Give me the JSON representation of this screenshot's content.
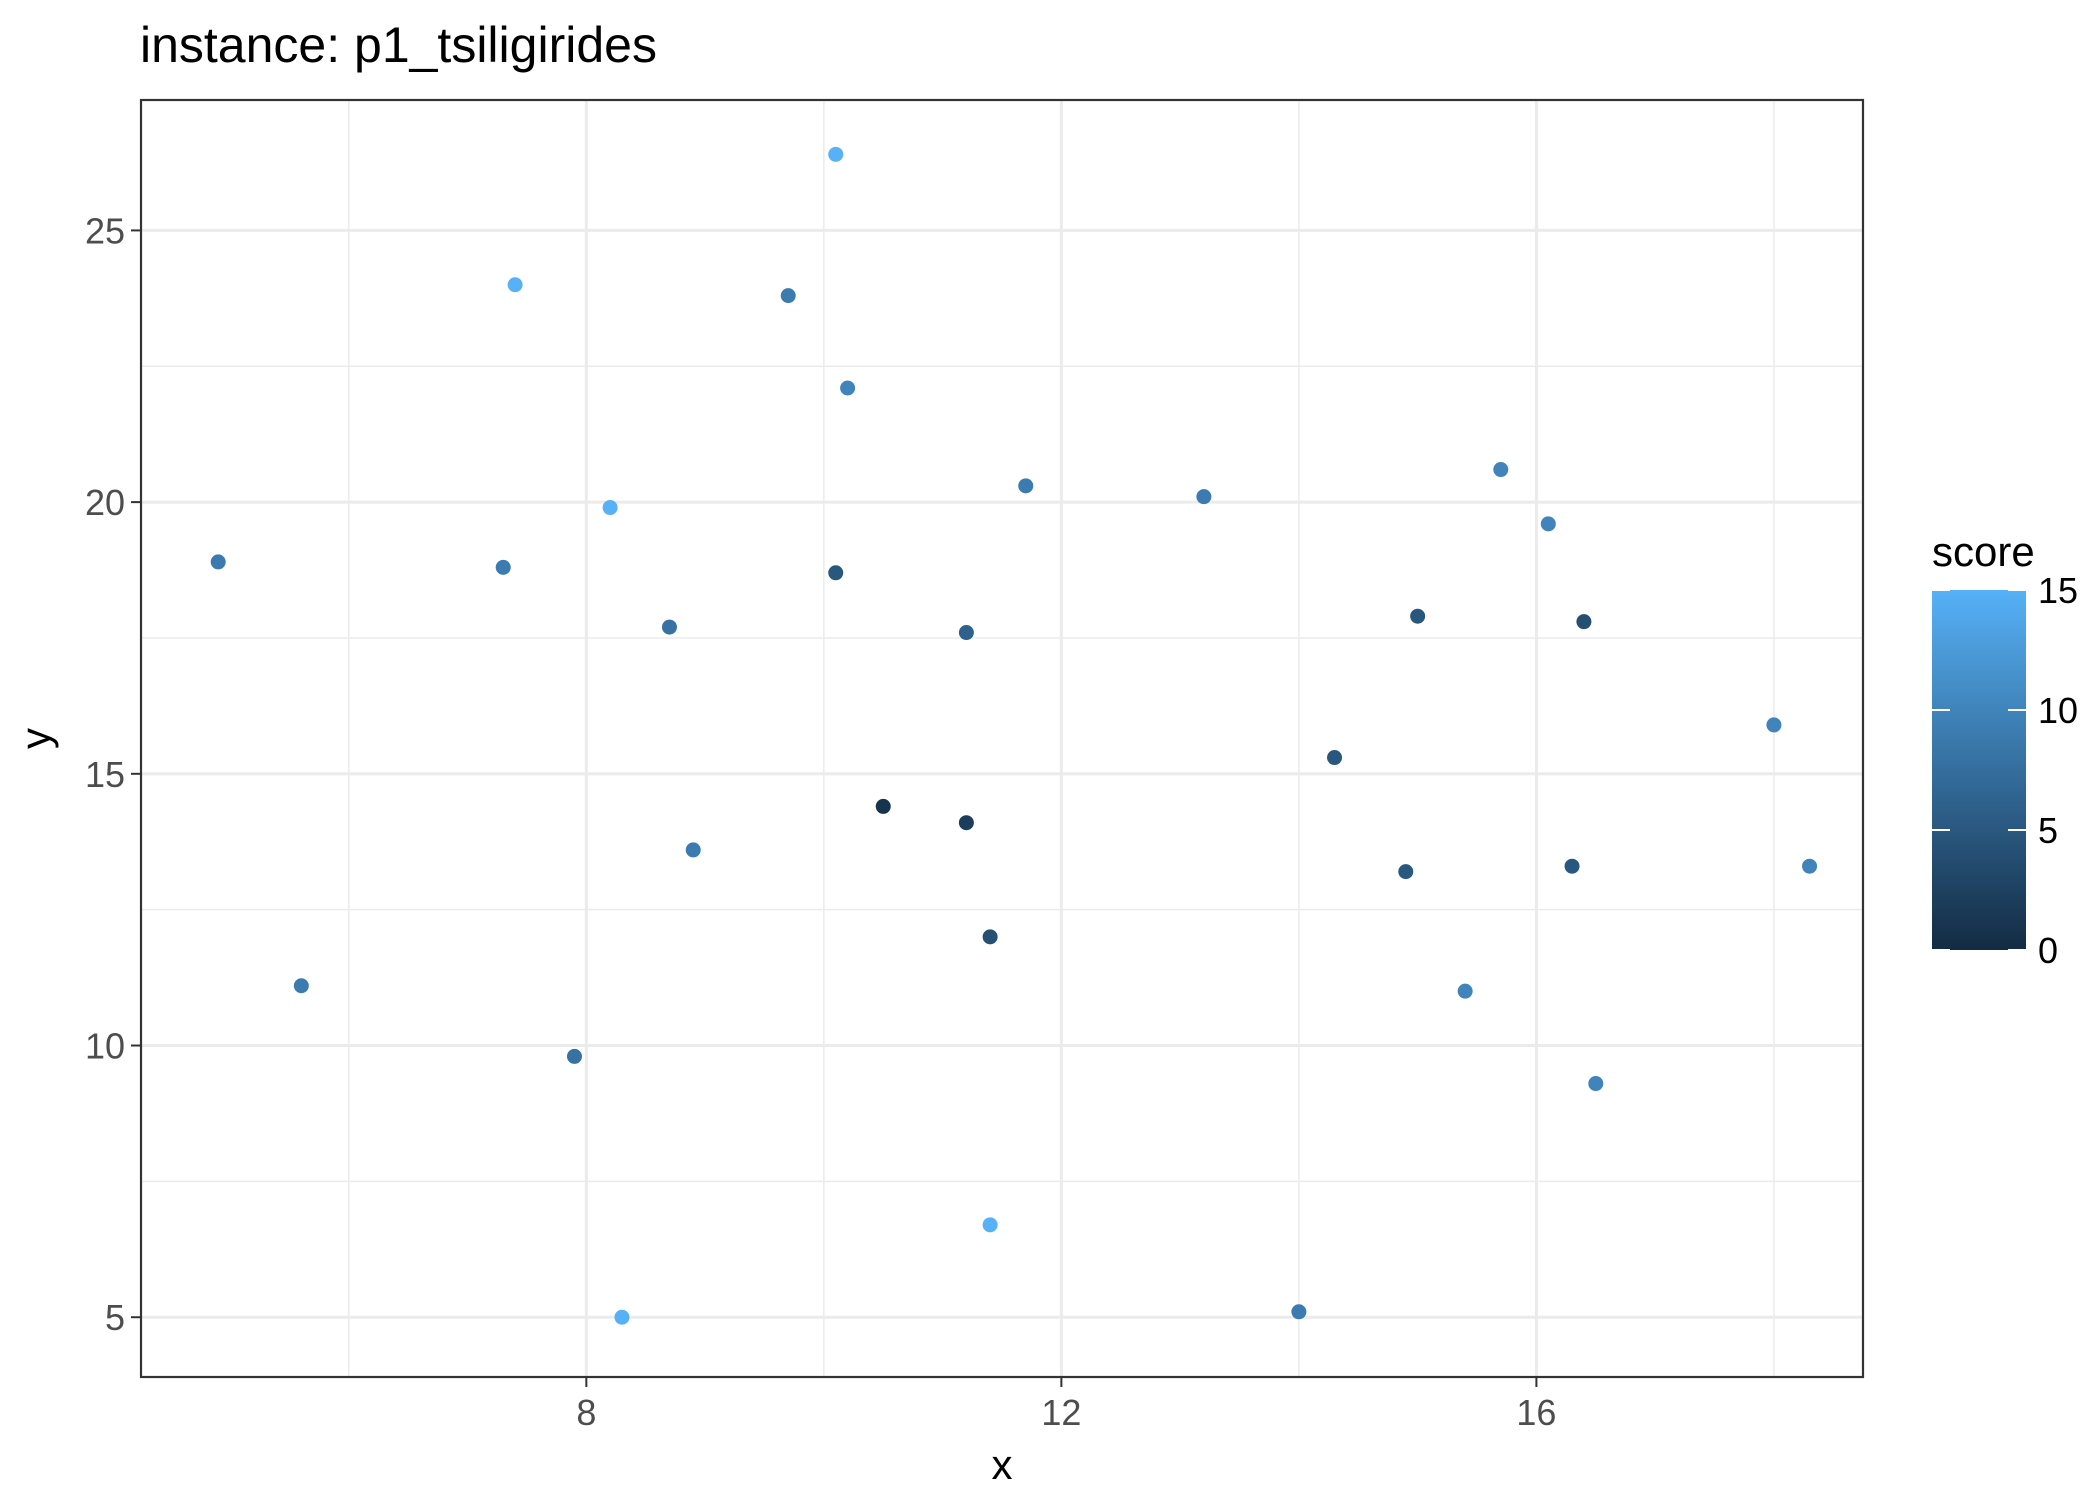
{
  "chart_data": {
    "type": "scatter",
    "title": "instance: p1_tsiligirides",
    "xlabel": "x",
    "ylabel": "y",
    "xlim": [
      4.25,
      18.75
    ],
    "ylim": [
      3.9,
      27.4
    ],
    "x_ticks": [
      8,
      12,
      16
    ],
    "y_ticks": [
      5,
      10,
      15,
      20,
      25
    ],
    "x_minor_ticks": [
      6,
      10,
      14,
      18
    ],
    "y_minor_ticks": [
      7.5,
      12.5,
      17.5,
      22.5
    ],
    "grid": true,
    "legend": {
      "title": "score",
      "placement": "right",
      "ticks": [
        0,
        5,
        10,
        15
      ],
      "range": [
        0,
        15
      ],
      "low_color": "#132b43",
      "high_color": "#56b1f7"
    },
    "points": [
      {
        "x": 10.1,
        "y": 26.4,
        "score": 15
      },
      {
        "x": 7.4,
        "y": 24.0,
        "score": 15
      },
      {
        "x": 9.7,
        "y": 23.8,
        "score": 9
      },
      {
        "x": 10.2,
        "y": 22.1,
        "score": 10
      },
      {
        "x": 11.7,
        "y": 20.3,
        "score": 9
      },
      {
        "x": 13.2,
        "y": 20.1,
        "score": 9
      },
      {
        "x": 8.2,
        "y": 19.9,
        "score": 15
      },
      {
        "x": 15.7,
        "y": 20.6,
        "score": 10
      },
      {
        "x": 16.1,
        "y": 19.6,
        "score": 10
      },
      {
        "x": 4.9,
        "y": 18.9,
        "score": 9
      },
      {
        "x": 7.3,
        "y": 18.8,
        "score": 9
      },
      {
        "x": 10.1,
        "y": 18.7,
        "score": 5
      },
      {
        "x": 8.7,
        "y": 17.7,
        "score": 8
      },
      {
        "x": 11.2,
        "y": 17.6,
        "score": 6
      },
      {
        "x": 15.0,
        "y": 17.9,
        "score": 5
      },
      {
        "x": 16.4,
        "y": 17.8,
        "score": 4
      },
      {
        "x": 18.0,
        "y": 15.9,
        "score": 10
      },
      {
        "x": 14.3,
        "y": 15.3,
        "score": 5
      },
      {
        "x": 10.5,
        "y": 14.4,
        "score": 1
      },
      {
        "x": 11.2,
        "y": 14.1,
        "score": 2
      },
      {
        "x": 8.9,
        "y": 13.6,
        "score": 9
      },
      {
        "x": 14.9,
        "y": 13.2,
        "score": 5
      },
      {
        "x": 16.3,
        "y": 13.3,
        "score": 5
      },
      {
        "x": 18.3,
        "y": 13.3,
        "score": 10
      },
      {
        "x": 11.4,
        "y": 12.0,
        "score": 4
      },
      {
        "x": 5.6,
        "y": 11.1,
        "score": 9
      },
      {
        "x": 15.4,
        "y": 11.0,
        "score": 10
      },
      {
        "x": 7.9,
        "y": 9.8,
        "score": 8
      },
      {
        "x": 16.5,
        "y": 9.3,
        "score": 10
      },
      {
        "x": 11.4,
        "y": 6.7,
        "score": 15
      },
      {
        "x": 8.3,
        "y": 5.0,
        "score": 15
      },
      {
        "x": 14.0,
        "y": 5.1,
        "score": 9
      }
    ]
  }
}
